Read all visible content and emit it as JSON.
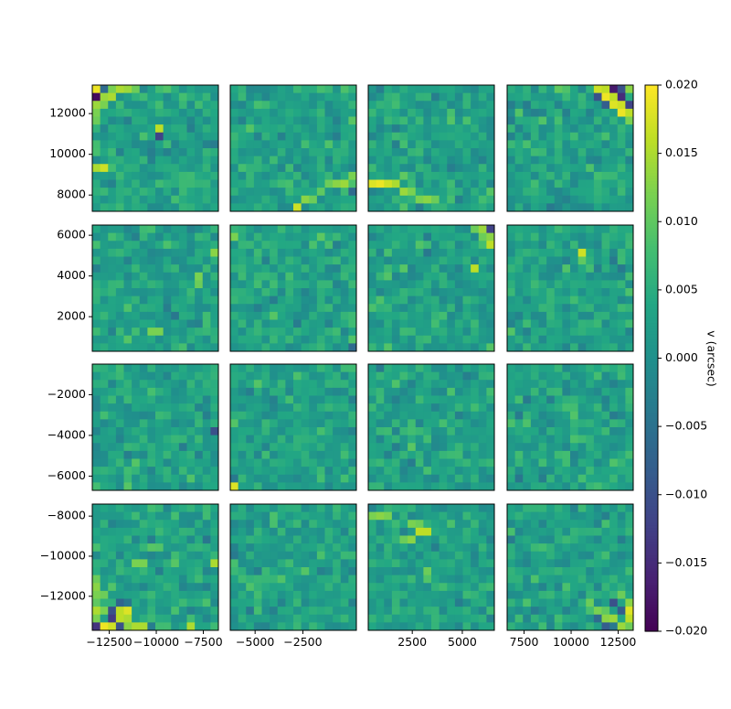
{
  "chart_data": {
    "type": "heatmap",
    "layout": "4x4 grid of detector panels sharing a colorbar",
    "colormap": "viridis",
    "grid": false,
    "colorbar": {
      "label": "v (arcsec)",
      "range": [
        -0.02,
        0.02
      ],
      "ticks": [
        0.02,
        0.015,
        0.01,
        0.005,
        0.0,
        -0.005,
        -0.01,
        -0.015,
        -0.02
      ],
      "tick_labels": [
        "0.020",
        "0.015",
        "0.010",
        "0.005",
        "0.000",
        "−0.005",
        "−0.010",
        "−0.015",
        "−0.020"
      ]
    },
    "y_axis": {
      "row_ranges": [
        [
          7200,
          13400
        ],
        [
          300,
          6500
        ],
        [
          -6700,
          -500
        ],
        [
          -13700,
          -7400
        ]
      ],
      "row_ticks": [
        [
          8000,
          10000,
          12000
        ],
        [
          2000,
          4000,
          6000
        ],
        [
          -6000,
          -4000,
          -2000
        ],
        [
          -12000,
          -10000,
          -8000
        ]
      ],
      "row_tick_labels": [
        [
          "8000",
          "10000",
          "12000"
        ],
        [
          "2000",
          "4000",
          "6000"
        ],
        [
          "−6000",
          "−4000",
          "−2000"
        ],
        [
          "−12000",
          "−10000",
          "−8000"
        ]
      ]
    },
    "x_axis": {
      "col_ranges": [
        [
          -13400,
          -6700
        ],
        [
          -6300,
          300
        ],
        [
          300,
          6600
        ],
        [
          6600,
          13300
        ]
      ],
      "col_ticks": [
        [
          -12500,
          -10000,
          -7500
        ],
        [
          -5000,
          -2500
        ],
        [
          2500,
          5000
        ],
        [
          7500,
          10000,
          12500
        ]
      ],
      "col_tick_labels": [
        [
          "−12500",
          "−10000",
          "−7500"
        ],
        [
          "−5000",
          "−2500"
        ],
        [
          "2500",
          "5000"
        ],
        [
          "7500",
          "10000",
          "12500"
        ]
      ]
    },
    "panel_grid": {
      "nx": 16,
      "ny": 16,
      "base_value": 0.003,
      "noise_amplitude": 0.0045
    },
    "highlights": [
      {
        "panel": [
          0,
          0
        ],
        "desc": "top-left corner extremes",
        "cells": [
          [
            0,
            0,
            0.019
          ],
          [
            0,
            1,
            -0.006
          ],
          [
            0,
            2,
            0.012
          ],
          [
            0,
            3,
            0.015
          ],
          [
            0,
            4,
            0.014
          ],
          [
            0,
            5,
            0.011
          ],
          [
            1,
            0,
            -0.019
          ],
          [
            1,
            1,
            0.014
          ],
          [
            1,
            2,
            0.015
          ],
          [
            2,
            0,
            0.014
          ],
          [
            2,
            1,
            0.012
          ],
          [
            3,
            0,
            0.012
          ],
          [
            4,
            0,
            0.011
          ],
          [
            10,
            1,
            0.017
          ],
          [
            10,
            0,
            0.015
          ]
        ]
      },
      {
        "panel": [
          0,
          0
        ],
        "desc": "isolated cell pair",
        "cells": [
          [
            5,
            8,
            0.016
          ],
          [
            6,
            8,
            -0.012
          ]
        ]
      },
      {
        "panel": [
          0,
          1
        ],
        "desc": "diagonal streak",
        "cells": [
          [
            15,
            8,
            0.017
          ],
          [
            14,
            9,
            0.013
          ],
          [
            14,
            10,
            0.011
          ],
          [
            13,
            11,
            0.01
          ],
          [
            12,
            12,
            0.011
          ],
          [
            12,
            13,
            0.013
          ],
          [
            12,
            14,
            0.014
          ],
          [
            11,
            15,
            0.012
          ],
          [
            13,
            15,
            -0.006
          ]
        ]
      },
      {
        "panel": [
          0,
          2
        ],
        "desc": "lower-left streak",
        "cells": [
          [
            12,
            0,
            0.018
          ],
          [
            12,
            1,
            0.019
          ],
          [
            12,
            2,
            0.017
          ],
          [
            12,
            3,
            0.015
          ],
          [
            13,
            4,
            0.014
          ],
          [
            13,
            5,
            0.012
          ],
          [
            14,
            6,
            0.012
          ],
          [
            14,
            7,
            0.013
          ],
          [
            14,
            8,
            0.011
          ],
          [
            11,
            4,
            0.01
          ]
        ]
      },
      {
        "panel": [
          0,
          3
        ],
        "desc": "top-right corner streak",
        "cells": [
          [
            0,
            11,
            0.017
          ],
          [
            0,
            12,
            0.016
          ],
          [
            0,
            13,
            -0.017
          ],
          [
            0,
            14,
            -0.01
          ],
          [
            0,
            15,
            0.013
          ],
          [
            1,
            11,
            -0.01
          ],
          [
            1,
            12,
            0.019
          ],
          [
            1,
            13,
            0.016
          ],
          [
            1,
            14,
            -0.015
          ],
          [
            2,
            12,
            -0.008
          ],
          [
            2,
            13,
            0.018
          ],
          [
            2,
            14,
            0.017
          ],
          [
            3,
            14,
            0.019
          ],
          [
            3,
            15,
            0.016
          ],
          [
            4,
            15,
            0.012
          ],
          [
            2,
            15,
            -0.012
          ]
        ]
      },
      {
        "panel": [
          1,
          0
        ],
        "desc": "scattered highs",
        "cells": [
          [
            13,
            7,
            0.012
          ],
          [
            13,
            8,
            0.012
          ],
          [
            6,
            13,
            0.012
          ],
          [
            7,
            13,
            0.011
          ],
          [
            3,
            15,
            0.013
          ]
        ]
      },
      {
        "panel": [
          1,
          1
        ],
        "desc": "corner cells",
        "cells": [
          [
            1,
            0,
            0.012
          ],
          [
            15,
            15,
            -0.006
          ]
        ]
      },
      {
        "panel": [
          1,
          2
        ],
        "desc": "top-right corner",
        "cells": [
          [
            0,
            14,
            0.014
          ],
          [
            0,
            15,
            -0.012
          ],
          [
            1,
            14,
            0.011
          ],
          [
            1,
            15,
            0.013
          ],
          [
            2,
            15,
            0.016
          ],
          [
            5,
            13,
            0.016
          ],
          [
            0,
            13,
            0.011
          ]
        ]
      },
      {
        "panel": [
          1,
          3
        ],
        "desc": "isolated high",
        "cells": [
          [
            3,
            9,
            0.017
          ],
          [
            4,
            9,
            0.01
          ]
        ]
      },
      {
        "panel": [
          2,
          0
        ],
        "desc": "right-edge low",
        "cells": [
          [
            8,
            15,
            -0.01
          ]
        ]
      },
      {
        "panel": [
          2,
          1
        ],
        "desc": "bottom-left corner",
        "cells": [
          [
            15,
            0,
            0.018
          ],
          [
            14,
            0,
            -0.004
          ]
        ]
      },
      {
        "panel": [
          3,
          0
        ],
        "desc": "bottom-left streak",
        "cells": [
          [
            15,
            0,
            -0.014
          ],
          [
            15,
            1,
            0.019
          ],
          [
            15,
            2,
            0.017
          ],
          [
            15,
            3,
            -0.01
          ],
          [
            15,
            4,
            0.013
          ],
          [
            15,
            5,
            0.015
          ],
          [
            15,
            6,
            0.015
          ],
          [
            15,
            12,
            0.015
          ],
          [
            14,
            0,
            0.012
          ],
          [
            14,
            2,
            -0.013
          ],
          [
            14,
            3,
            0.016
          ],
          [
            14,
            4,
            0.015
          ],
          [
            13,
            0,
            0.015
          ],
          [
            13,
            1,
            0.012
          ],
          [
            13,
            2,
            -0.01
          ],
          [
            13,
            3,
            0.016
          ],
          [
            13,
            4,
            0.018
          ],
          [
            12,
            0,
            0.01
          ],
          [
            12,
            3,
            -0.007
          ],
          [
            11,
            0,
            0.012
          ],
          [
            11,
            1,
            0.011
          ],
          [
            10,
            0,
            0.013
          ],
          [
            9,
            0,
            0.011
          ],
          [
            7,
            6,
            0.012
          ],
          [
            7,
            5,
            0.012
          ],
          [
            7,
            15,
            0.015
          ]
        ]
      },
      {
        "panel": [
          3,
          2
        ],
        "desc": "upper streak",
        "cells": [
          [
            1,
            0,
            0.012
          ],
          [
            1,
            1,
            0.013
          ],
          [
            1,
            2,
            0.012
          ],
          [
            2,
            5,
            0.012
          ],
          [
            2,
            6,
            0.011
          ],
          [
            3,
            6,
            0.016
          ],
          [
            3,
            7,
            0.016
          ],
          [
            4,
            5,
            0.013
          ],
          [
            4,
            4,
            0.011
          ],
          [
            8,
            7,
            0.011
          ]
        ]
      },
      {
        "panel": [
          3,
          3
        ],
        "desc": "bottom-right streak",
        "cells": [
          [
            15,
            13,
            -0.004
          ],
          [
            15,
            14,
            0.014
          ],
          [
            15,
            15,
            0.011
          ],
          [
            14,
            12,
            0.013
          ],
          [
            14,
            13,
            0.014
          ],
          [
            14,
            15,
            0.016
          ],
          [
            13,
            11,
            0.012
          ],
          [
            13,
            12,
            0.01
          ],
          [
            13,
            14,
            -0.008
          ],
          [
            12,
            10,
            0.011
          ],
          [
            12,
            13,
            -0.01
          ],
          [
            11,
            14,
            0.011
          ],
          [
            12,
            15,
            0.013
          ],
          [
            13,
            15,
            0.018
          ],
          [
            15,
            12,
            -0.008
          ],
          [
            14,
            11,
            -0.006
          ]
        ]
      }
    ]
  }
}
